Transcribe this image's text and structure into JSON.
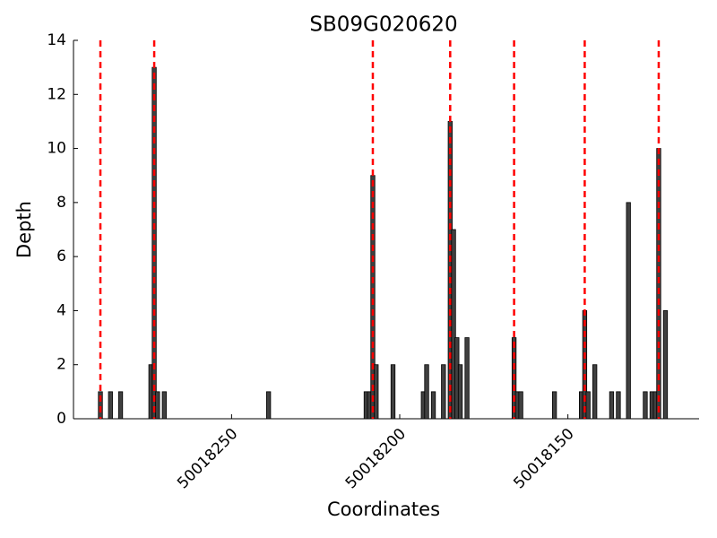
{
  "chart_data": {
    "type": "bar",
    "title": "SB09G020620",
    "x_label": "Coordinates",
    "y_label": "Depth",
    "x": [
      50018289,
      50018286,
      50018283,
      50018274,
      50018273,
      50018272,
      50018270,
      50018239,
      50018210,
      50018209,
      50018208,
      50018207,
      50018202,
      50018193,
      50018192,
      50018190,
      50018187,
      50018185,
      50018184,
      50018183,
      50018182,
      50018180,
      50018166,
      50018165,
      50018164,
      50018154,
      50018146,
      50018145,
      50018144,
      50018142,
      50018137,
      50018135,
      50018132,
      50018127,
      50018125,
      50018124,
      50018123,
      50018121
    ],
    "values": [
      1,
      1,
      1,
      2,
      13,
      1,
      1,
      1,
      1,
      1,
      9,
      2,
      2,
      1,
      2,
      1,
      2,
      11,
      7,
      3,
      2,
      3,
      3,
      1,
      1,
      1,
      1,
      4,
      1,
      2,
      1,
      1,
      8,
      1,
      1,
      1,
      10,
      4
    ],
    "color": "#404040",
    "vlines": [
      50018289,
      50018273,
      50018208,
      50018185,
      50018166,
      50018145,
      50018123
    ],
    "vline_color": "#ff0000",
    "xlim": [
      50018297,
      50018111
    ],
    "xticks": [
      50018250,
      50018200,
      50018150
    ],
    "ylim": [
      0,
      14
    ],
    "yticks": [
      0,
      2,
      4,
      6,
      8,
      10,
      12,
      14
    ]
  }
}
